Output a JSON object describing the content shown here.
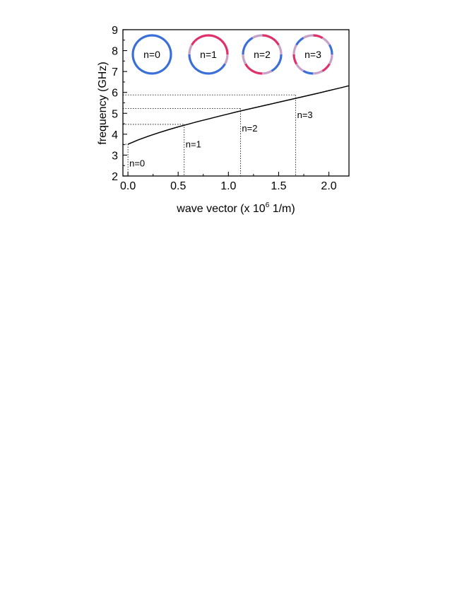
{
  "chart_data": {
    "type": "line",
    "title": "",
    "xlabel": "wave vector (x 10",
    "xlabel_sup": "6",
    "xlabel_suffix": " 1/m)",
    "ylabel": "frequency (GHz)",
    "xlim": [
      -0.05,
      2.2
    ],
    "ylim": [
      2,
      9
    ],
    "xticks": [
      0.0,
      0.5,
      1.0,
      1.5,
      2.0
    ],
    "xtick_labels": [
      "0.0",
      "0.5",
      "1.0",
      "1.5",
      "2.0"
    ],
    "yticks": [
      2,
      3,
      4,
      5,
      6,
      7,
      8,
      9
    ],
    "ytick_labels": [
      "2",
      "3",
      "4",
      "5",
      "6",
      "7",
      "8",
      "9"
    ],
    "grid": false,
    "series": [
      {
        "color": "#000000",
        "x": [
          0.0,
          0.1,
          0.2,
          0.3,
          0.4,
          0.5,
          0.6,
          0.7,
          0.8,
          0.9,
          1.0,
          1.1,
          1.2,
          1.3,
          1.4,
          1.5,
          1.6,
          1.7,
          1.8,
          1.9,
          2.0,
          2.1,
          2.2
        ],
        "y": [
          3.52,
          3.72,
          3.9,
          4.06,
          4.21,
          4.35,
          4.48,
          4.61,
          4.73,
          4.85,
          4.97,
          5.09,
          5.2,
          5.31,
          5.42,
          5.53,
          5.64,
          5.75,
          5.86,
          5.97,
          6.09,
          6.2,
          6.32
        ]
      }
    ],
    "modes": [
      {
        "label": "n=0",
        "x": 0.0,
        "y": 3.52
      },
      {
        "label": "n=1",
        "x": 0.56,
        "y": 4.47
      },
      {
        "label": "n=2",
        "x": 1.12,
        "y": 5.23
      },
      {
        "label": "n=3",
        "x": 1.67,
        "y": 5.88
      }
    ],
    "insets": [
      {
        "label": "n=0",
        "colors": [
          "#3b6fd8",
          "#3b6fd8",
          "#3b6fd8",
          "#3b6fd8",
          "#3b6fd8",
          "#3b6fd8",
          "#3b6fd8",
          "#3b6fd8",
          "#3b6fd8",
          "#3b6fd8",
          "#3b6fd8",
          "#3b6fd8"
        ]
      },
      {
        "label": "n=1",
        "colors": [
          "#e0306a",
          "#e0306a",
          "#e0306a",
          "#c8a0c8",
          "#3b6fd8",
          "#3b6fd8",
          "#3b6fd8",
          "#3b6fd8",
          "#3b6fd8",
          "#c8a0c8",
          "#e0306a",
          "#e0306a"
        ]
      },
      {
        "label": "n=2",
        "colors": [
          "#e0306a",
          "#e0306a",
          "#c8a0c8",
          "#3b6fd8",
          "#3b6fd8",
          "#c8a0c8",
          "#e0306a",
          "#e0306a",
          "#c8a0c8",
          "#3b6fd8",
          "#3b6fd8",
          "#c8a0c8"
        ]
      },
      {
        "label": "n=3",
        "colors": [
          "#e0306a",
          "#c8a0c8",
          "#3b6fd8",
          "#c8a0c8",
          "#e0306a",
          "#c8a0c8",
          "#3b6fd8",
          "#c8a0c8",
          "#e0306a",
          "#c8a0c8",
          "#3b6fd8",
          "#c8a0c8"
        ]
      }
    ]
  }
}
